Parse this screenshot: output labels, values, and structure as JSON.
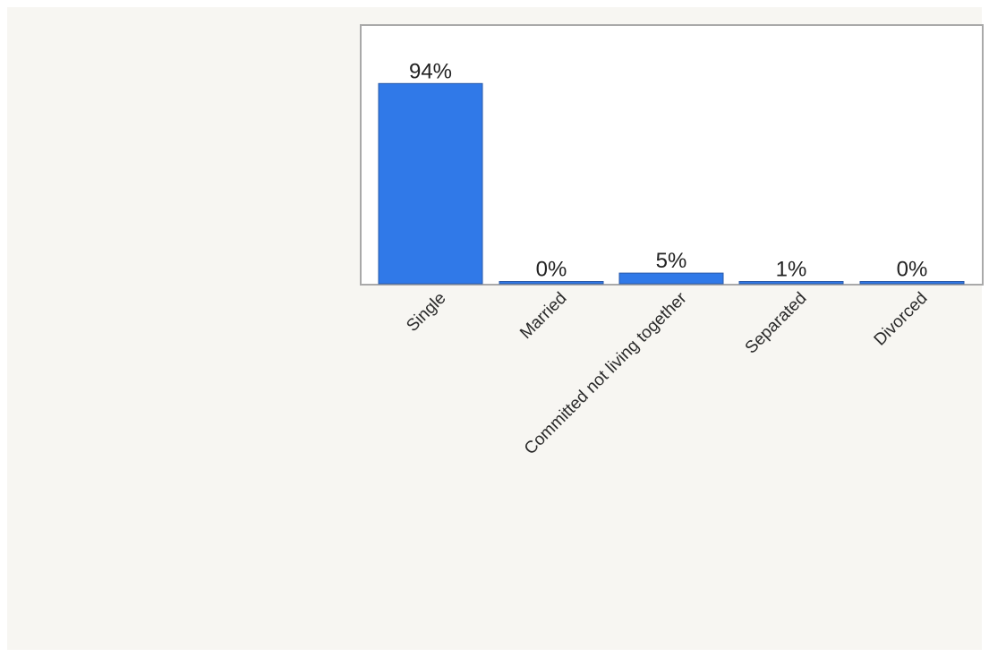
{
  "colors": {
    "bar_fill": "#3079e8",
    "bar_stroke": "#2a5aa8"
  },
  "chart_data": {
    "type": "bar",
    "categories": [
      "Single",
      "Married",
      "Committed not living together",
      "Separated",
      "Divorced"
    ],
    "values": [
      94,
      0,
      5,
      1,
      0
    ],
    "value_labels": [
      "94%",
      "0%",
      "5%",
      "1%",
      "0%"
    ],
    "title": "",
    "xlabel": "",
    "ylabel": "",
    "ylim": [
      0,
      100
    ],
    "grid": false,
    "legend": "none"
  }
}
